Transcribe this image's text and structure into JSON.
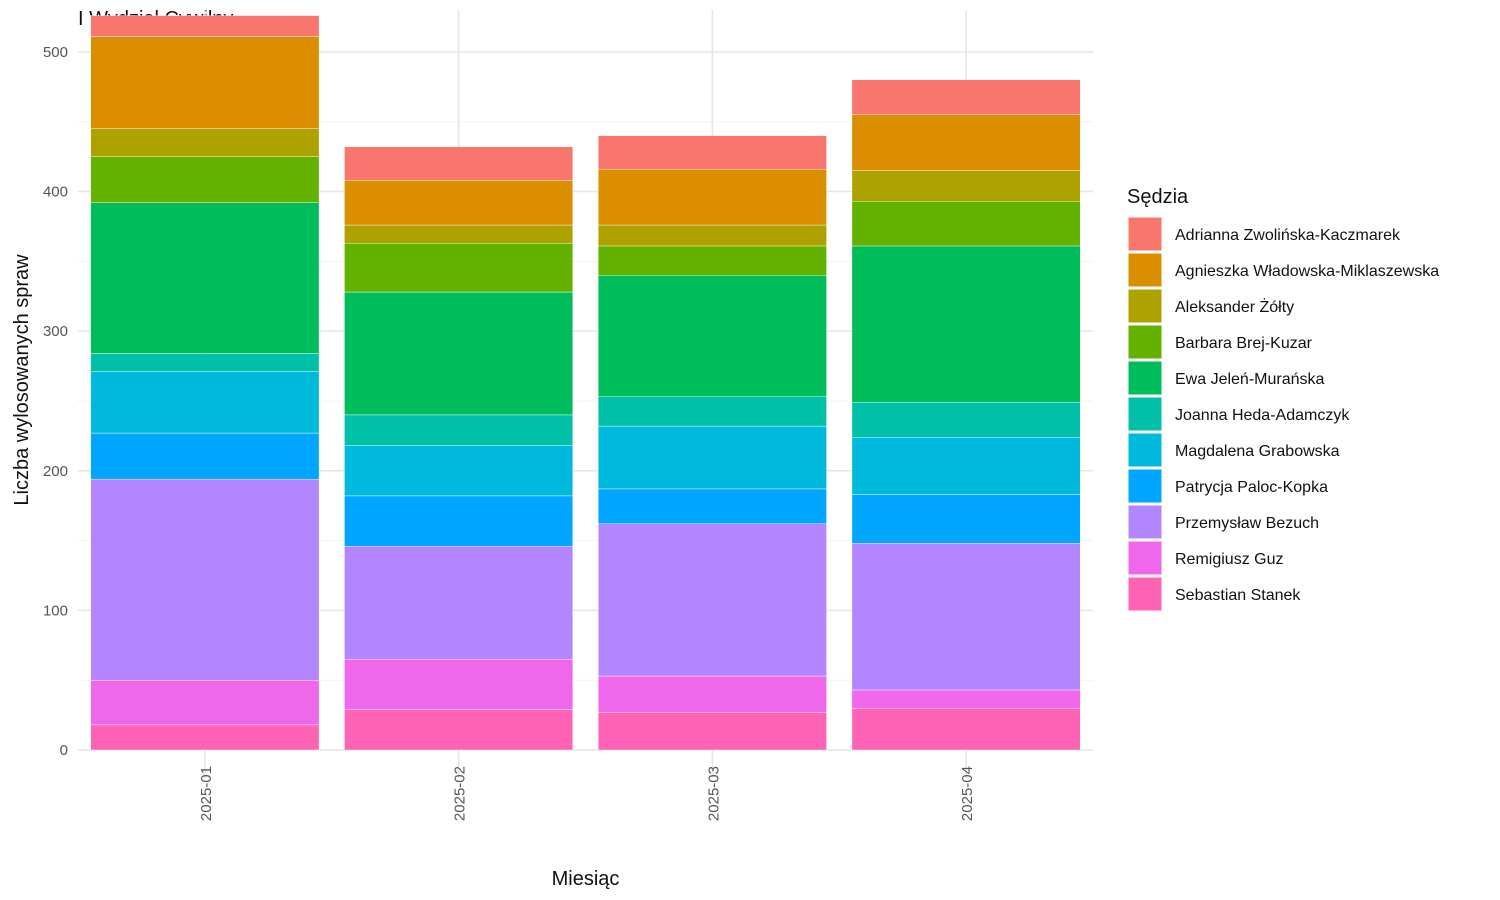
{
  "chart_data": {
    "type": "bar",
    "stacked": true,
    "title": "I Wydział Cywilny",
    "xlabel": "Miesiąc",
    "ylabel": "Liczba wylosowanych spraw",
    "ylim": [
      0,
      530
    ],
    "yticks": [
      0,
      100,
      200,
      300,
      400,
      500
    ],
    "grid": true,
    "legend_title": "Sędzia",
    "legend_position": "right",
    "categories": [
      "2025-01",
      "2025-02",
      "2025-03",
      "2025-04"
    ],
    "series": [
      {
        "name": "Adrianna Zwolińska-Kaczmarek",
        "color": "#F8766D",
        "values": [
          15,
          24,
          24,
          25
        ]
      },
      {
        "name": "Agnieszka Władowska-Miklaszewska",
        "color": "#DB8E00",
        "values": [
          66,
          32,
          40,
          40
        ]
      },
      {
        "name": "Aleksander Żółty",
        "color": "#AEA200",
        "values": [
          20,
          13,
          15,
          22
        ]
      },
      {
        "name": "Barbara Brej-Kuzar",
        "color": "#64B200",
        "values": [
          33,
          35,
          21,
          32
        ]
      },
      {
        "name": "Ewa Jeleń-Murańska",
        "color": "#00BD5C",
        "values": [
          108,
          88,
          87,
          112
        ]
      },
      {
        "name": "Joanna Heda-Adamczyk",
        "color": "#00C1A7",
        "values": [
          13,
          22,
          21,
          25
        ]
      },
      {
        "name": "Magdalena Grabowska",
        "color": "#00BADE",
        "values": [
          44,
          36,
          45,
          41
        ]
      },
      {
        "name": "Patrycja Paloc-Kopka",
        "color": "#00A6FF",
        "values": [
          33,
          36,
          25,
          35
        ]
      },
      {
        "name": "Przemysław Bezuch",
        "color": "#B385FF",
        "values": [
          144,
          81,
          109,
          105
        ]
      },
      {
        "name": "Remigiusz Guz",
        "color": "#EF67EB",
        "values": [
          32,
          36,
          26,
          13
        ]
      },
      {
        "name": "Sebastian Stanek",
        "color": "#FF63B6",
        "values": [
          18,
          29,
          27,
          30
        ]
      }
    ]
  }
}
